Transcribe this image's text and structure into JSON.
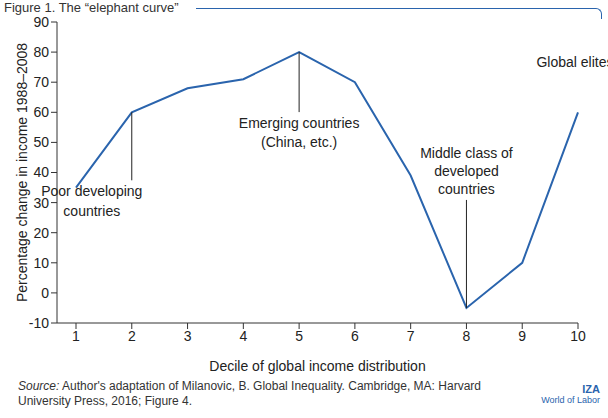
{
  "chart_data": {
    "type": "line",
    "title": "Figure 1. The “elephant curve”",
    "x_label": "Decile of global income distribution",
    "y_label": "Percentage change in income 1988–2008",
    "categories": [
      "1",
      "2",
      "3",
      "4",
      "5",
      "6",
      "7",
      "8",
      "9",
      "10"
    ],
    "values": [
      35,
      60,
      68,
      71,
      80,
      70,
      39,
      -5,
      10,
      60
    ],
    "color": "#2a64ad",
    "ylim": [
      -10,
      90
    ],
    "yticks": [
      -10,
      0,
      10,
      20,
      30,
      40,
      50,
      60,
      70,
      80,
      90
    ],
    "grid": false,
    "annotations": [
      {
        "lines": [
          "Poor developing",
          "countries"
        ],
        "x": "2"
      },
      {
        "lines": [
          "Emerging countries",
          "(China, etc.)"
        ],
        "x": "5"
      },
      {
        "lines": [
          "Middle class of",
          "developed",
          "countries"
        ],
        "x": "8"
      },
      {
        "lines": [
          "Global elites"
        ],
        "x": "10"
      }
    ],
    "source": "Source: Author's adaptation of Milanovic, B. Global Inequality. Cambridge, MA: Harvard University Press, 2016; Figure 4.",
    "logo": [
      "IZA",
      "World of Labor"
    ]
  }
}
